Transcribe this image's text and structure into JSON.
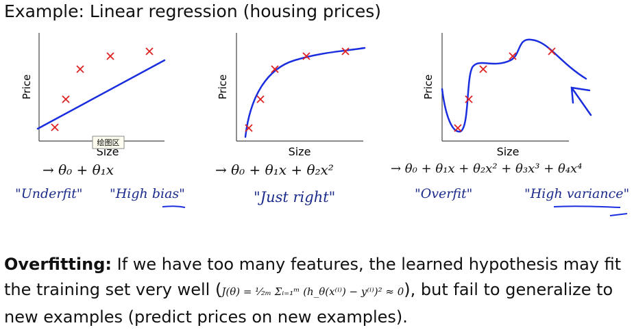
{
  "header": {
    "title": "Example: Linear regression (housing prices)"
  },
  "plots": [
    {
      "y_label": "Price",
      "x_label": "Size",
      "hypothesis": "→ θ₀ + θ₁x",
      "notes": [
        "\"Underfit\"",
        "\"High bias\""
      ],
      "tooltip": "绘图区"
    },
    {
      "y_label": "Price",
      "x_label": "Size",
      "hypothesis": "→ θ₀ + θ₁x + θ₂x²",
      "notes": [
        "\"Just right\""
      ]
    },
    {
      "y_label": "Price",
      "x_label": "Size",
      "hypothesis": "→ θ₀ + θ₁x + θ₂x² + θ₃x³ + θ₄x⁴",
      "notes": [
        "\"Overfit\"",
        "\"High variance\""
      ]
    }
  ],
  "body": {
    "label": "Overfitting:",
    "text_before": " If we have too many features, the learned hypothesis may fit the training set very well (",
    "formula": "J(θ) = ¹⁄₂ₘ Σᵢ₌₁ᵐ (h_θ(x⁽ⁱ⁾) − y⁽ⁱ⁾)² ≈ 0",
    "text_after": "), but fail to generalize to new examples (predict prices on new examples)."
  }
}
